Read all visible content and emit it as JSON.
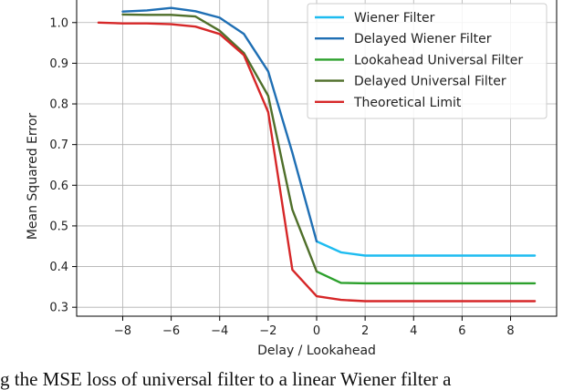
{
  "chart_data": {
    "type": "line",
    "title": "",
    "xlabel": "Delay / Lookahead",
    "ylabel": "Mean Squared Error",
    "xlim": [
      -9.9,
      9.9
    ],
    "ylim": [
      0.278,
      1.06
    ],
    "xticks": [
      -8,
      -6,
      -4,
      -2,
      0,
      2,
      4,
      6,
      8
    ],
    "xtick_labels": [
      "−8",
      "−6",
      "−4",
      "−2",
      "0",
      "2",
      "4",
      "6",
      "8"
    ],
    "yticks": [
      0.3,
      0.4,
      0.5,
      0.6,
      0.7,
      0.8,
      0.9,
      1.0
    ],
    "ytick_labels": [
      "0.3",
      "0.4",
      "0.5",
      "0.6",
      "0.7",
      "0.8",
      "0.9",
      "1.0"
    ],
    "grid": true,
    "legend_position": "top-right",
    "series": [
      {
        "name": "Wiener Filter",
        "color": "#1ebcf0",
        "x": [
          0,
          1,
          2,
          3,
          4,
          5,
          6,
          7,
          8,
          9
        ],
        "y": [
          0.462,
          0.435,
          0.427,
          0.427,
          0.427,
          0.427,
          0.427,
          0.427,
          0.427,
          0.427
        ]
      },
      {
        "name": "Delayed Wiener Filter",
        "color": "#1f6fb4",
        "x": [
          -8,
          -7,
          -6,
          -5,
          -4,
          -3,
          -2,
          -1,
          0
        ],
        "y": [
          1.027,
          1.03,
          1.036,
          1.028,
          1.012,
          0.972,
          0.88,
          0.68,
          0.462
        ]
      },
      {
        "name": "Lookahead Universal Filter",
        "color": "#2ca02c",
        "x": [
          0,
          1,
          2,
          3,
          4,
          5,
          6,
          7,
          8,
          9
        ],
        "y": [
          0.388,
          0.36,
          0.359,
          0.359,
          0.359,
          0.359,
          0.359,
          0.359,
          0.359,
          0.359
        ]
      },
      {
        "name": "Delayed Universal Filter",
        "color": "#4f6f2a",
        "x": [
          -8,
          -7,
          -6,
          -5,
          -4,
          -3,
          -2,
          -1,
          0
        ],
        "y": [
          1.02,
          1.019,
          1.019,
          1.015,
          0.98,
          0.925,
          0.82,
          0.54,
          0.388
        ]
      },
      {
        "name": "Theoretical Limit",
        "color": "#d62728",
        "x": [
          -9,
          -8,
          -7,
          -6,
          -5,
          -4,
          -3,
          -2,
          -1,
          0,
          1,
          2,
          3,
          4,
          5,
          6,
          7,
          8,
          9
        ],
        "y": [
          1.0,
          0.998,
          0.998,
          0.996,
          0.99,
          0.972,
          0.92,
          0.78,
          0.392,
          0.327,
          0.318,
          0.315,
          0.315,
          0.315,
          0.315,
          0.315,
          0.315,
          0.315,
          0.315
        ]
      }
    ]
  },
  "caption": {
    "text": "g the MSE loss of universal filter to a linear Wiener filter a"
  }
}
